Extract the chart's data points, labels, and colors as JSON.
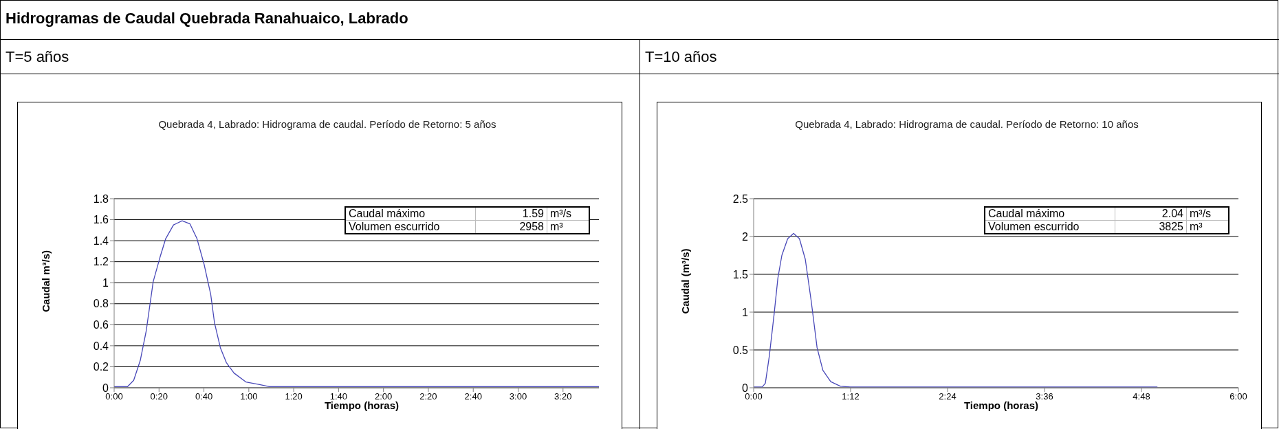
{
  "chart_data": [
    {
      "type": "line",
      "title": "Quebrada 4, Labrado: Hidrograma de caudal. Período de Retorno: 5 años",
      "subtitle": "T=5 años",
      "xlabel": "Tiempo (horas)",
      "ylabel": "Caudal m³/s)",
      "annotations": [
        "Caudal máximo",
        "1.59",
        "m³/s",
        "Volumen escurrido",
        "2958",
        "m³",
        "Hidrogramas de Caudal Quebrada Ranahuaico, Labrado"
      ],
      "x": [
        0,
        0.099,
        0.145,
        0.194,
        0.238,
        0.29,
        0.34,
        0.383,
        0.441,
        0.505,
        0.563,
        0.615,
        0.667,
        0.717,
        0.745,
        0.789,
        0.833,
        0.89,
        0.978,
        1.08,
        1.152,
        3.6
      ],
      "series": [
        {
          "color": "#4848b8",
          "values": [
            0.01,
            0.01,
            0.07,
            0.26,
            0.54,
            1.01,
            1.24,
            1.42,
            1.55,
            1.59,
            1.56,
            1.42,
            1.18,
            0.89,
            0.62,
            0.38,
            0.24,
            0.14,
            0.055,
            0.03,
            0.01,
            0.01
          ]
        }
      ],
      "xlim": [
        0,
        3.6
      ],
      "xticks": [
        {
          "value": 0,
          "label": "0:00"
        },
        {
          "value": 0.3333,
          "label": "0:20"
        },
        {
          "value": 0.6667,
          "label": "0:40"
        },
        {
          "value": 1,
          "label": "1:00"
        },
        {
          "value": 1.3333,
          "label": "1:20"
        },
        {
          "value": 1.6667,
          "label": "1:40"
        },
        {
          "value": 2,
          "label": "2:00"
        },
        {
          "value": 2.3333,
          "label": "2:20"
        },
        {
          "value": 2.6667,
          "label": "2:40"
        },
        {
          "value": 3,
          "label": "3:00"
        },
        {
          "value": 3.3333,
          "label": "3:20"
        }
      ],
      "ylim": [
        0,
        1.8
      ],
      "yticks": [
        0,
        0.2,
        0.4,
        0.6,
        0.8,
        1,
        1.2,
        1.4,
        1.6,
        1.8
      ],
      "grid": "y",
      "legend": false,
      "marker": "none",
      "line_style": "solid"
    },
    {
      "type": "line",
      "title": "Quebrada 4, Labrado: Hidrograma de caudal. Período de Retorno: 10 años",
      "subtitle": "T=10 años",
      "xlabel": "Tiempo (horas)",
      "ylabel": "Caudal (m³/s)",
      "annotations": [
        "Caudal máximo",
        "2.04",
        "m³/s",
        "Volumen escurrido",
        "3825",
        "m³"
      ],
      "x": [
        0,
        0.107,
        0.145,
        0.194,
        0.252,
        0.3,
        0.349,
        0.421,
        0.494,
        0.567,
        0.639,
        0.712,
        0.785,
        0.857,
        0.954,
        1.075,
        1.196,
        4.998
      ],
      "series": [
        {
          "color": "#4848b8",
          "values": [
            0.01,
            0.01,
            0.06,
            0.42,
            0.96,
            1.45,
            1.75,
            1.97,
            2.04,
            1.97,
            1.7,
            1.15,
            0.53,
            0.23,
            0.08,
            0.02,
            0.01,
            0.01
          ]
        }
      ],
      "xlim": [
        0,
        6
      ],
      "xticks": [
        {
          "value": 0,
          "label": "0:00"
        },
        {
          "value": 1.2,
          "label": "1:12"
        },
        {
          "value": 2.4,
          "label": "2:24"
        },
        {
          "value": 3.6,
          "label": "3:36"
        },
        {
          "value": 4.8,
          "label": "4:48"
        },
        {
          "value": 6,
          "label": "6:00"
        }
      ],
      "ylim": [
        0,
        2.5
      ],
      "yticks": [
        0,
        0.5,
        1,
        1.5,
        2,
        2.5
      ],
      "grid": "y",
      "legend": false,
      "marker": "none",
      "line_style": "solid"
    }
  ]
}
